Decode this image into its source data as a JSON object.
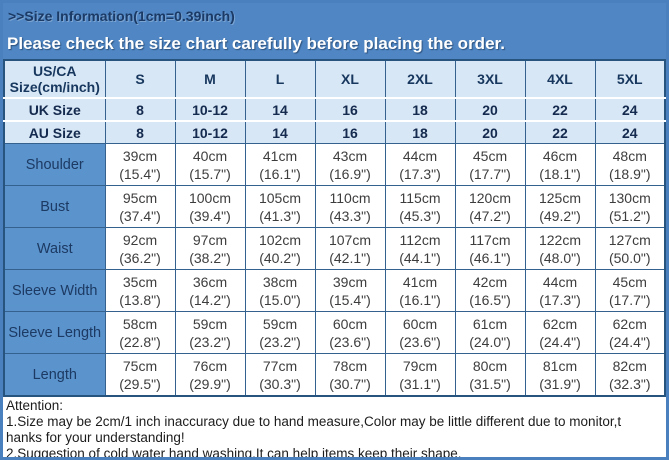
{
  "banner": {
    "notice": "Please check the size chart carefully before placing the order."
  },
  "chart_data": {
    "type": "table",
    "title": ">>Size Information(1cm=0.39inch)",
    "corner_header": [
      "US/CA",
      "Size(cm/inch)"
    ],
    "size_columns": [
      "S",
      "M",
      "L",
      "XL",
      "2XL",
      "3XL",
      "4XL",
      "5XL"
    ],
    "size_rows": [
      {
        "label": "UK Size",
        "values": [
          "8",
          "10-12",
          "14",
          "16",
          "18",
          "20",
          "22",
          "24"
        ]
      },
      {
        "label": "AU Size",
        "values": [
          "8",
          "10-12",
          "14",
          "16",
          "18",
          "20",
          "22",
          "24"
        ]
      }
    ],
    "measurement_rows": [
      {
        "label": "Shoulder",
        "cm": [
          "39cm",
          "40cm",
          "41cm",
          "43cm",
          "44cm",
          "45cm",
          "46cm",
          "48cm"
        ],
        "inch": [
          "(15.4\")",
          "(15.7\")",
          "(16.1\")",
          "(16.9\")",
          "(17.3\")",
          "(17.7\")",
          "(18.1\")",
          "(18.9\")"
        ]
      },
      {
        "label": "Bust",
        "cm": [
          "95cm",
          "100cm",
          "105cm",
          "110cm",
          "115cm",
          "120cm",
          "125cm",
          "130cm"
        ],
        "inch": [
          "(37.4\")",
          "(39.4\")",
          "(41.3\")",
          "(43.3\")",
          "(45.3\")",
          "(47.2\")",
          "(49.2\")",
          "(51.2\")"
        ]
      },
      {
        "label": "Waist",
        "cm": [
          "92cm",
          "97cm",
          "102cm",
          "107cm",
          "112cm",
          "117cm",
          "122cm",
          "127cm"
        ],
        "inch": [
          "(36.2\")",
          "(38.2\")",
          "(40.2\")",
          "(42.1\")",
          "(44.1\")",
          "(46.1\")",
          "(48.0\")",
          "(50.0\")"
        ]
      },
      {
        "label": "Sleeve Width",
        "cm": [
          "35cm",
          "36cm",
          "38cm",
          "39cm",
          "41cm",
          "42cm",
          "44cm",
          "45cm"
        ],
        "inch": [
          "(13.8\")",
          "(14.2\")",
          "(15.0\")",
          "(15.4\")",
          "(16.1\")",
          "(16.5\")",
          "(17.3\")",
          "(17.7\")"
        ]
      },
      {
        "label": "Sleeve Length",
        "cm": [
          "58cm",
          "59cm",
          "59cm",
          "60cm",
          "60cm",
          "61cm",
          "62cm",
          "62cm"
        ],
        "inch": [
          "(22.8\")",
          "(23.2\")",
          "(23.2\")",
          "(23.6\")",
          "(23.6\")",
          "(24.0\")",
          "(24.4\")",
          "(24.4\")"
        ]
      },
      {
        "label": "Length",
        "cm": [
          "75cm",
          "76cm",
          "77cm",
          "78cm",
          "79cm",
          "80cm",
          "81cm",
          "82cm"
        ],
        "inch": [
          "(29.5\")",
          "(29.9\")",
          "(30.3\")",
          "(30.7\")",
          "(31.1\")",
          "(31.5\")",
          "(31.9\")",
          "(32.3\")"
        ]
      }
    ]
  },
  "footer": {
    "lines": [
      "Attention:",
      "1.Size may be 2cm/1 inch inaccuracy due to hand measure,Color may be little different due to monitor,t",
      "hanks for your understanding!",
      "2.Suggestion of cold water hand washing.It can help items keep their shape."
    ]
  },
  "colors": {
    "banner_blue": "#4f86c3",
    "header_light_blue": "#d8e7f5",
    "label_blue": "#5b93cc",
    "navy_text": "#17375e",
    "grid_line": "#35618f",
    "value_text": "#3d3d3d"
  }
}
